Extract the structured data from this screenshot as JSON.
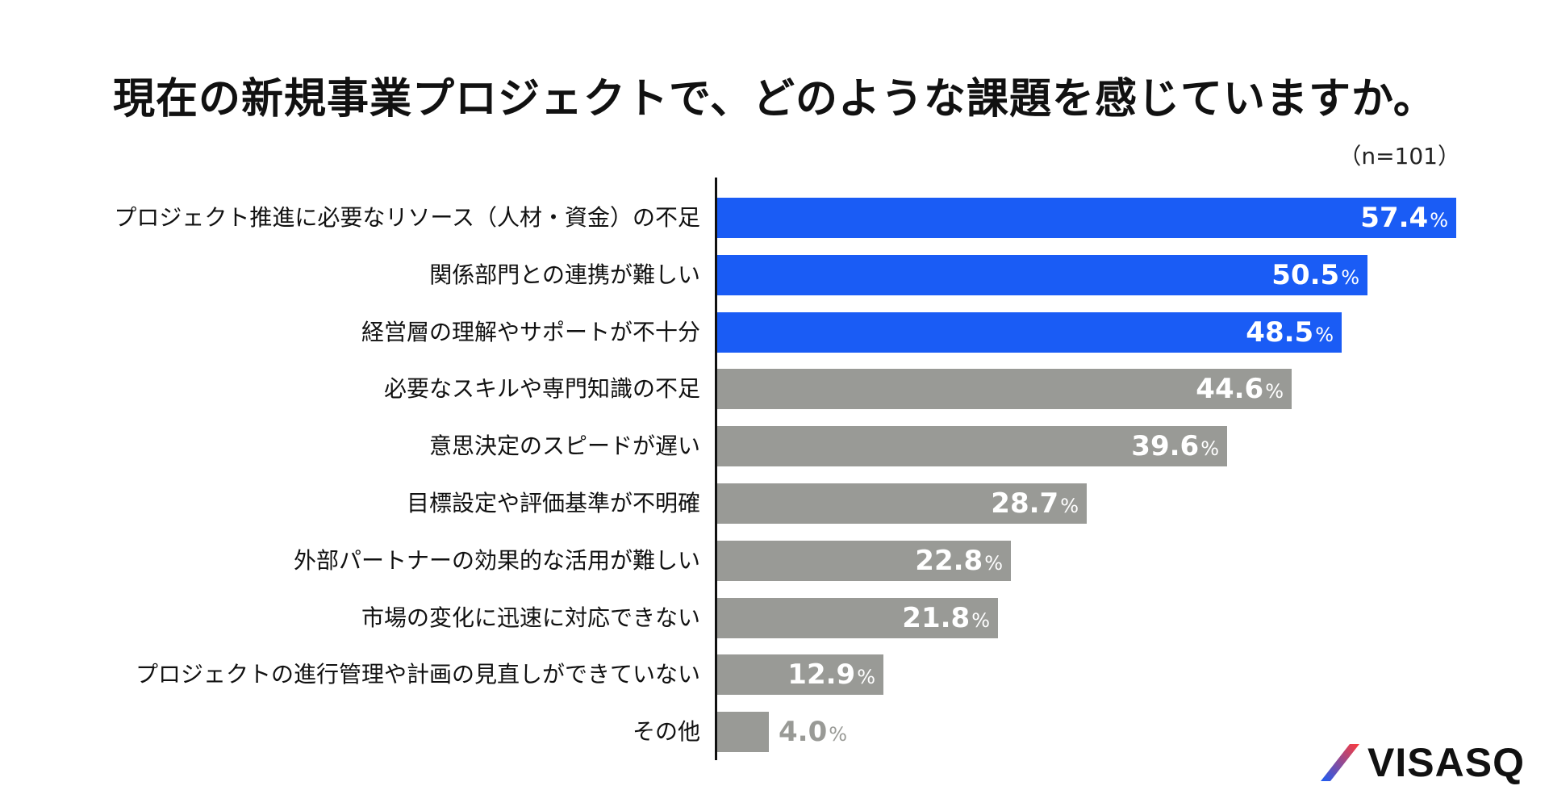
{
  "chart_data": {
    "type": "bar",
    "orientation": "horizontal",
    "title": "現在の新規事業プロジェクトで、どのような課題を感じていますか。",
    "sample_size": "（n=101）",
    "unit": "%",
    "xlim": [
      0,
      60
    ],
    "categories": [
      "プロジェクト推進に必要なリソース（人材・資金）の不足",
      "関係部門との連携が難しい",
      "経営層の理解やサポートが不十分",
      "必要なスキルや専門知識の不足",
      "意思決定のスピードが遅い",
      "目標設定や評価基準が不明確",
      "外部パートナーの効果的な活用が難しい",
      "市場の変化に迅速に対応できない",
      "プロジェクトの進行管理や計画の見直しができていない",
      "その他"
    ],
    "values": [
      57.4,
      50.5,
      48.5,
      44.6,
      39.6,
      28.7,
      22.8,
      21.8,
      12.9,
      4.0
    ],
    "value_labels": [
      "57.4",
      "50.5",
      "48.5",
      "44.6",
      "39.6",
      "28.7",
      "22.8",
      "21.8",
      "12.9",
      "4.0"
    ],
    "highlight_count": 3,
    "colors": {
      "highlight": "#1a5cf5",
      "normal": "#999a96",
      "outside_label": "#999a96",
      "inside_label": "#ffffff"
    }
  },
  "logo": {
    "text": "VISASQ",
    "mark_color_start": "#1a5cf5",
    "mark_color_end": "#ff3b3b"
  }
}
